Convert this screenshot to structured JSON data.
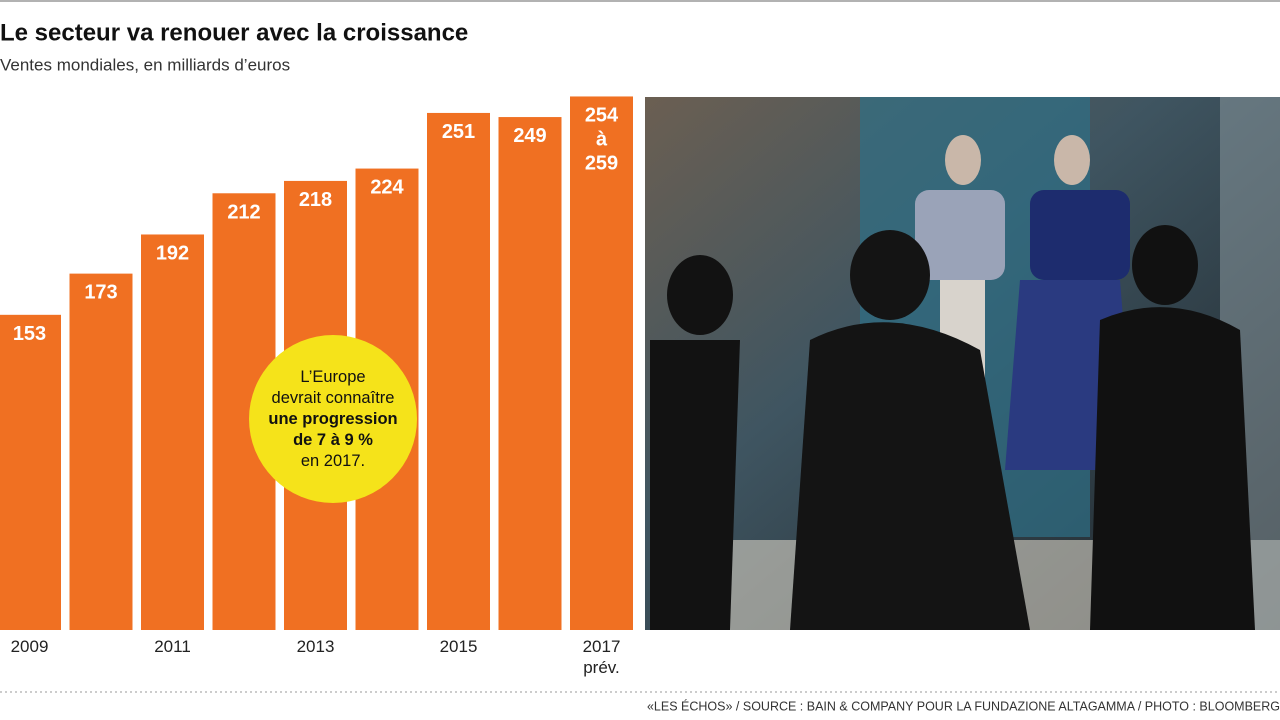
{
  "chart_data": {
    "type": "bar",
    "title": "Le secteur va renouer avec la croissance",
    "subtitle": "Ventes mondiales, en milliards d’euros",
    "categories": [
      "2009",
      null,
      "2011",
      null,
      "2013",
      null,
      "2015",
      null,
      "2017 prév."
    ],
    "values": [
      153,
      173,
      192,
      212,
      218,
      224,
      251,
      249,
      259
    ],
    "value_labels": [
      "153",
      "173",
      "192",
      "212",
      "218",
      "224",
      "251",
      "249",
      "254 à 259"
    ],
    "color": "#f07022",
    "annotation": {
      "line1": "L’Europe",
      "line2": "devrait connaître",
      "bold1": "une progression",
      "bold2": "de 7 à 9 %",
      "line3": "en 2017."
    },
    "source": "«LES ÉCHOS» / SOURCE : BAIN & COMPANY POUR LA FUNDAZIONE ALTAGAMMA / PHOTO : BLOOMBERG"
  }
}
